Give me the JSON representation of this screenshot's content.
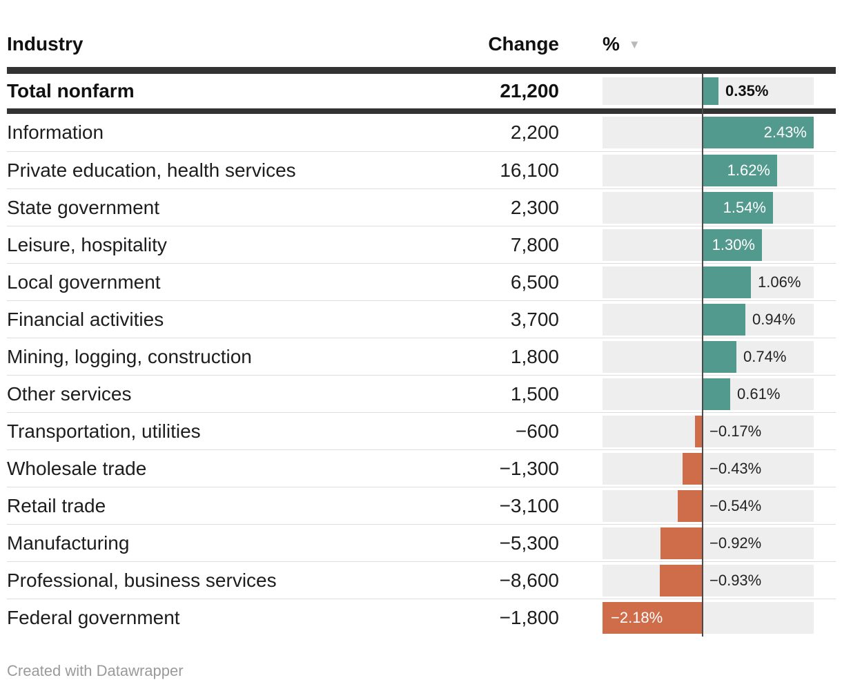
{
  "header": {
    "industry": "Industry",
    "change": "Change",
    "percent": "%",
    "sort_icon": "▼"
  },
  "total_row": {
    "industry": "Total nonfarm",
    "change": "21,200",
    "pct": 0.35,
    "pct_label": "0.35%"
  },
  "rows": [
    {
      "industry": "Information",
      "change": "2,200",
      "pct": 2.43,
      "pct_label": "2.43%"
    },
    {
      "industry": "Private education, health services",
      "change": "16,100",
      "pct": 1.62,
      "pct_label": "1.62%"
    },
    {
      "industry": "State government",
      "change": "2,300",
      "pct": 1.54,
      "pct_label": "1.54%"
    },
    {
      "industry": "Leisure, hospitality",
      "change": "7,800",
      "pct": 1.3,
      "pct_label": "1.30%"
    },
    {
      "industry": "Local government",
      "change": "6,500",
      "pct": 1.06,
      "pct_label": "1.06%"
    },
    {
      "industry": "Financial activities",
      "change": "3,700",
      "pct": 0.94,
      "pct_label": "0.94%"
    },
    {
      "industry": "Mining, logging, construction",
      "change": "1,800",
      "pct": 0.74,
      "pct_label": "0.74%"
    },
    {
      "industry": "Other services",
      "change": "1,500",
      "pct": 0.61,
      "pct_label": "0.61%"
    },
    {
      "industry": "Transportation, utilities",
      "change": "−600",
      "pct": -0.17,
      "pct_label": "−0.17%"
    },
    {
      "industry": "Wholesale trade",
      "change": "−1,300",
      "pct": -0.43,
      "pct_label": "−0.43%"
    },
    {
      "industry": "Retail trade",
      "change": "−3,100",
      "pct": -0.54,
      "pct_label": "−0.54%"
    },
    {
      "industry": "Manufacturing",
      "change": "−5,300",
      "pct": -0.92,
      "pct_label": "−0.92%"
    },
    {
      "industry": "Professional, business services",
      "change": "−8,600",
      "pct": -0.93,
      "pct_label": "−0.93%"
    },
    {
      "industry": "Federal government",
      "change": "−1,800",
      "pct": -2.18,
      "pct_label": "−2.18%"
    }
  ],
  "footer": {
    "credit": "Created with Datawrapper"
  },
  "colors": {
    "positive": "#529a8d",
    "negative": "#cf6d4b",
    "divider": "#333333",
    "zero_line": "#4a4a4a",
    "track": "#eeeeee",
    "row_border": "#dddddd",
    "sort_arrow": "#b9b9b9",
    "footer_text": "#9a9a9a"
  },
  "chart_data": {
    "type": "bar",
    "orientation": "horizontal",
    "title": "",
    "column_headers": [
      "Industry",
      "Change",
      "%"
    ],
    "sorted_by": "%",
    "sort_direction": "descending",
    "categories": [
      "Total nonfarm",
      "Information",
      "Private education, health services",
      "State government",
      "Leisure, hospitality",
      "Local government",
      "Financial activities",
      "Mining, logging, construction",
      "Other services",
      "Transportation, utilities",
      "Wholesale trade",
      "Retail trade",
      "Manufacturing",
      "Professional, business services",
      "Federal government"
    ],
    "series": [
      {
        "name": "Change",
        "values": [
          21200,
          2200,
          16100,
          2300,
          7800,
          6500,
          3700,
          1800,
          1500,
          -600,
          -1300,
          -3100,
          -5300,
          -8600,
          -1800
        ]
      },
      {
        "name": "%",
        "values": [
          0.35,
          2.43,
          1.62,
          1.54,
          1.3,
          1.06,
          0.94,
          0.74,
          0.61,
          -0.17,
          -0.43,
          -0.54,
          -0.92,
          -0.93,
          -2.18
        ]
      }
    ],
    "xlim": [
      -2.18,
      2.43
    ],
    "grid": false,
    "legend": false,
    "annotations": "Created with Datawrapper"
  }
}
